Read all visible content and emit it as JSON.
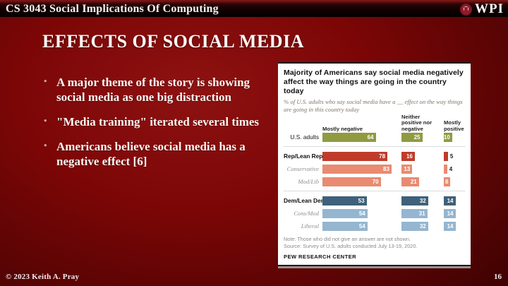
{
  "header": {
    "course_title": "CS 3043 Social Implications Of Computing",
    "logo_text": "WPI"
  },
  "slide": {
    "title": "EFFECTS OF SOCIAL MEDIA",
    "bullets": [
      "A major theme of the story is showing social media as one big distraction",
      "\"Media training\" iterated several times",
      "Americans believe social media has a negative effect [6]"
    ]
  },
  "footer": {
    "copyright": "© 2023 Keith A. Pray",
    "page_number": "16"
  },
  "chart_data": {
    "type": "bar",
    "title": "Majority of Americans say social media negatively affect the way things are going in the country today",
    "subtitle": "% of U.S. adults who say social media have a __ effect on the way things are going in this country today",
    "columns": [
      "Mostly negative",
      "Neither positive nor negative",
      "Mostly positive"
    ],
    "xlim": [
      0,
      100
    ],
    "sections": [
      {
        "rows": [
          {
            "label": "U.S. adults",
            "style": "plain",
            "color_key": "all",
            "values": [
              64,
              25,
              10
            ]
          }
        ]
      },
      {
        "rows": [
          {
            "label": "Rep/Lean Rep",
            "style": "lead",
            "color_key": "rep",
            "values": [
              78,
              16,
              5
            ]
          },
          {
            "label": "Conservative",
            "style": "sub",
            "color_key": "rep_sub",
            "values": [
              83,
              13,
              4
            ]
          },
          {
            "label": "Mod/Lib",
            "style": "sub",
            "color_key": "rep_sub",
            "values": [
              70,
              21,
              8
            ]
          }
        ]
      },
      {
        "rows": [
          {
            "label": "Dem/Lean Dem",
            "style": "lead",
            "color_key": "dem",
            "values": [
              53,
              32,
              14
            ]
          },
          {
            "label": "Cons/Mod",
            "style": "sub",
            "color_key": "dem_sub",
            "values": [
              54,
              31,
              14
            ]
          },
          {
            "label": "Liberal",
            "style": "sub",
            "color_key": "dem_sub",
            "values": [
              54,
              32,
              14
            ]
          }
        ]
      }
    ],
    "colors": {
      "all": "#909a41",
      "rep": "#c03b2a",
      "rep_sub": "#e88b70",
      "dem": "#3f617b",
      "dem_sub": "#94b6d0"
    },
    "note": "Note: Those who did not give an answer are not shown.",
    "source": "Source: Survey of U.S. adults conducted July 13-19, 2020.",
    "brand": "PEW RESEARCH CENTER"
  }
}
